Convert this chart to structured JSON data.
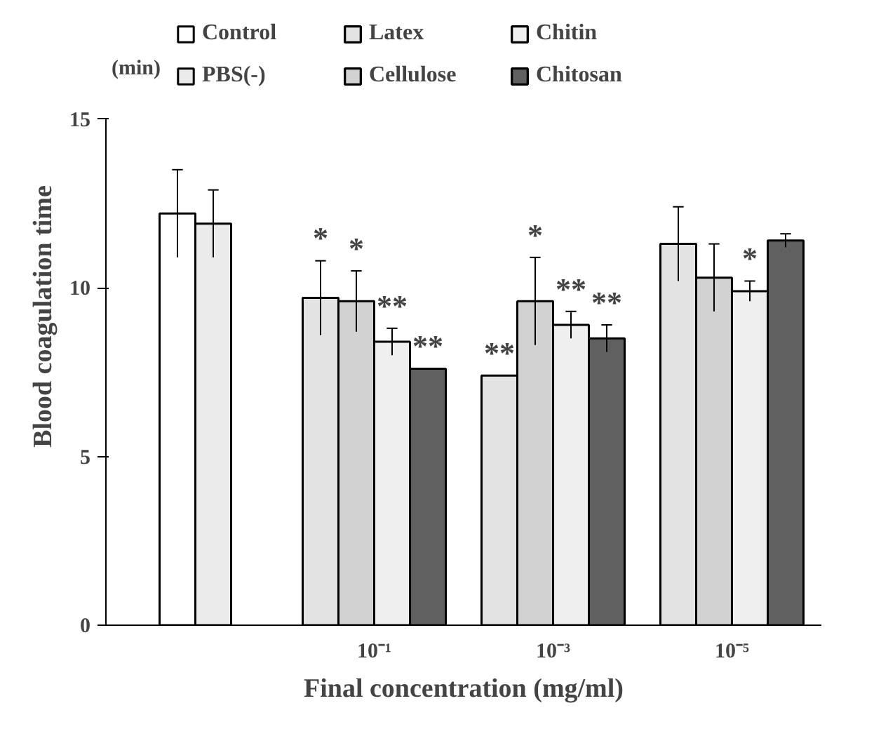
{
  "chart_data": {
    "type": "bar",
    "ylabel": "Blood coagulation time",
    "xlabel": "Final concentration (mg/ml)",
    "annotations": [
      "(min)"
    ],
    "categories": [
      null,
      "10⁻¹",
      "10⁻³",
      "10⁻⁵"
    ],
    "series": [
      {
        "name": "Control",
        "color": "#ffffff",
        "values": [
          12.2,
          null,
          null,
          null
        ],
        "errors": [
          1.3,
          null,
          null,
          null
        ]
      },
      {
        "name": "PBS(-)",
        "color": "#ebebeb",
        "values": [
          11.9,
          null,
          null,
          null
        ],
        "errors": [
          1.0,
          null,
          null,
          null
        ]
      },
      {
        "name": "Latex",
        "color": "#e3e3e3",
        "values": [
          null,
          9.7,
          7.4,
          11.3
        ],
        "errors": [
          null,
          1.1,
          null,
          1.1
        ],
        "value_labels": [
          null,
          "*",
          "**",
          null
        ]
      },
      {
        "name": "Cellulose",
        "color": "#d2d2d2",
        "values": [
          null,
          9.6,
          9.6,
          10.3
        ],
        "errors": [
          null,
          0.9,
          1.3,
          1.0
        ],
        "value_labels": [
          null,
          "*",
          "*",
          null
        ]
      },
      {
        "name": "Chitin",
        "color": "#efefef",
        "values": [
          null,
          8.4,
          8.9,
          9.9
        ],
        "errors": [
          null,
          0.4,
          0.4,
          0.3
        ],
        "value_labels": [
          null,
          "**",
          "**",
          "*"
        ]
      },
      {
        "name": "Chitosan",
        "color": "#606060",
        "values": [
          null,
          7.6,
          8.5,
          11.4
        ],
        "errors": [
          null,
          null,
          0.4,
          0.2
        ],
        "value_labels": [
          null,
          "**",
          "**",
          null
        ]
      }
    ],
    "ylim": [
      0,
      15
    ],
    "yticks": [
      0,
      5,
      10,
      15
    ],
    "grid": false,
    "legend": "top"
  }
}
